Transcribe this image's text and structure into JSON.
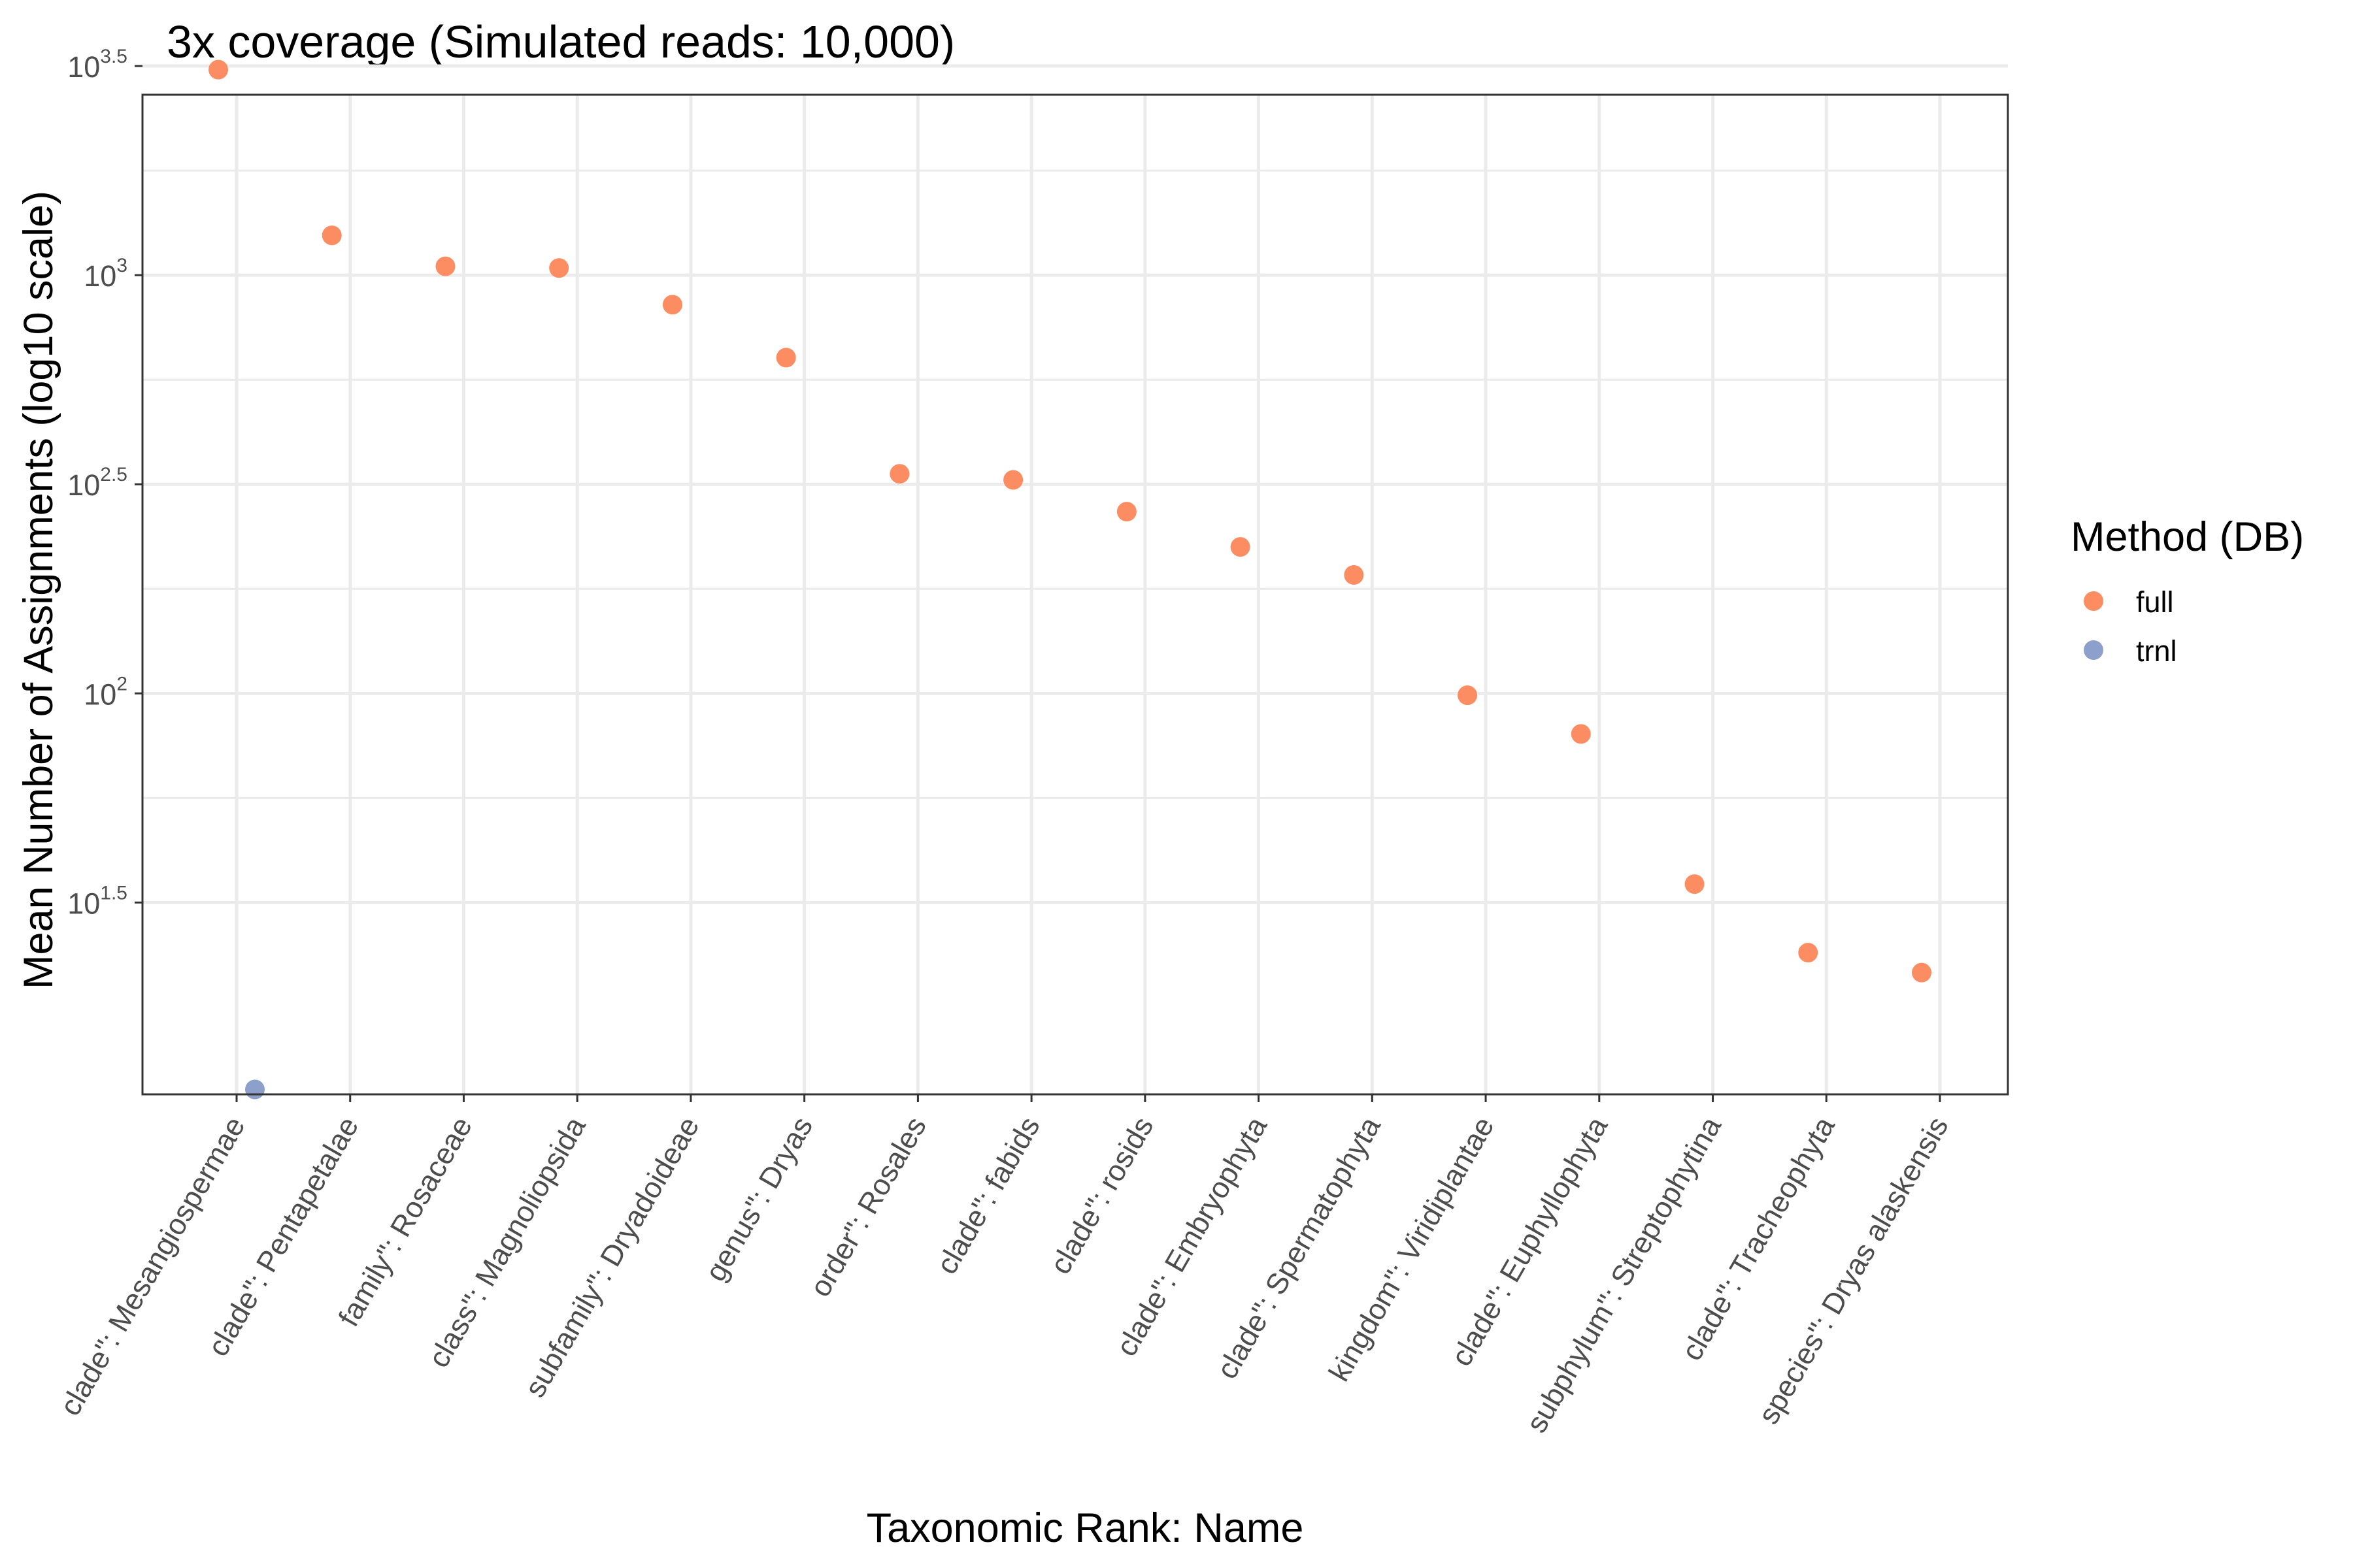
{
  "chart_data": {
    "type": "scatter",
    "title": "3x coverage (Simulated reads: 10,000)",
    "xlabel": "Taxonomic Rank: Name",
    "ylabel": "Mean Number of Assignments (log10 scale)",
    "y_scale": "log10",
    "ylim": [
      11,
      2700
    ],
    "y_ticks": [
      {
        "base": "10",
        "exp": "1.5",
        "value": 31.62
      },
      {
        "base": "10",
        "exp": "2",
        "value": 100
      },
      {
        "base": "10",
        "exp": "2.5",
        "value": 316.23
      },
      {
        "base": "10",
        "exp": "3",
        "value": 1000
      },
      {
        "base": "10",
        "exp": "3.5",
        "value": 3162.28
      }
    ],
    "grid": true,
    "categories": [
      "clade\": Mesangiospermae",
      "clade\": Pentapetalae",
      "family\": Rosaceae",
      "class\": Magnoliopsida",
      "subfamily\": Dryadoideae",
      "genus\": Dryas",
      "order\": Rosales",
      "clade\": fabids",
      "clade\": rosids",
      "clade\": Embryophyta",
      "clade\": Spermatophyta",
      "kingdom\": Viridiplantae",
      "clade\": Euphyllophyta",
      "subphylum\": Streptophytina",
      "clade\": Tracheophyta",
      "species\": Dryas alaskensis"
    ],
    "series": [
      {
        "name": "full",
        "color": "#FC8D62",
        "points": [
          {
            "x": "clade\": Mesangiospermae",
            "y": 3100
          },
          {
            "x": "clade\": Pentapetalae",
            "y": 1245
          },
          {
            "x": "family\": Rosaceae",
            "y": 1050
          },
          {
            "x": "class\": Magnoliopsida",
            "y": 1040
          },
          {
            "x": "subfamily\": Dryadoideae",
            "y": 850
          },
          {
            "x": "genus\": Dryas",
            "y": 635
          },
          {
            "x": "order\": Rosales",
            "y": 335
          },
          {
            "x": "clade\": fabids",
            "y": 324
          },
          {
            "x": "clade\": rosids",
            "y": 272
          },
          {
            "x": "clade\": Embryophyta",
            "y": 224
          },
          {
            "x": "clade\": Spermatophyta",
            "y": 192
          },
          {
            "x": "kingdom\": Viridiplantae",
            "y": 99
          },
          {
            "x": "clade\": Euphyllophyta",
            "y": 80
          },
          {
            "x": "subphylum\": Streptophytina",
            "y": 35
          },
          {
            "x": "clade\": Tracheophyta",
            "y": 24
          },
          {
            "x": "species\": Dryas alaskensis",
            "y": 21.5
          }
        ]
      },
      {
        "name": "trnl",
        "color": "#8DA0CB",
        "points": [
          {
            "x": "clade\": Mesangiospermae",
            "y": 11.3
          }
        ]
      }
    ],
    "legend": {
      "title": "Method (DB)",
      "position": "right"
    }
  }
}
